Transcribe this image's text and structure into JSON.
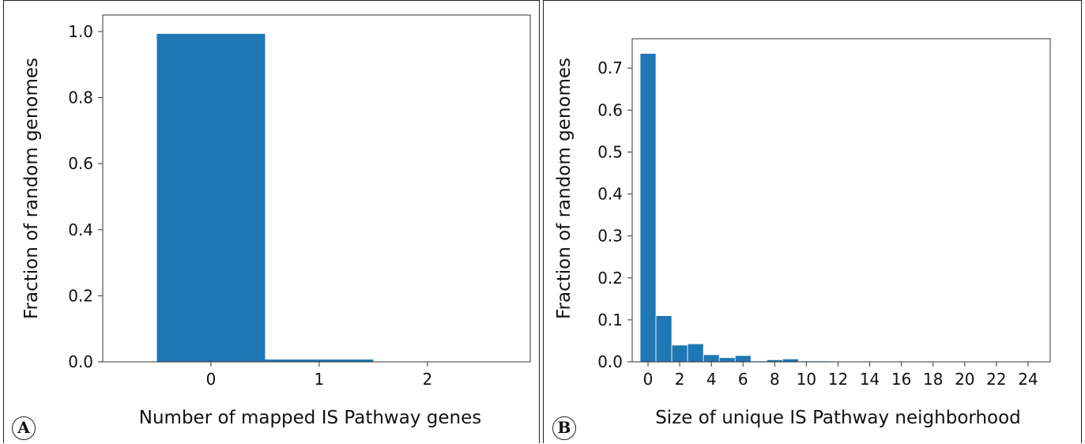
{
  "panels": {
    "a": {
      "letter": "A"
    },
    "b": {
      "letter": "B"
    }
  },
  "chart_data": [
    {
      "type": "bar",
      "panel": "A",
      "title": "",
      "xlabel": "Number of mapped IS Pathway genes",
      "ylabel": "Fraction of random genomes",
      "categories": [
        "0",
        "1",
        "2"
      ],
      "values": [
        0.993,
        0.007,
        0.0
      ],
      "xticks": [
        "0",
        "1",
        "2"
      ],
      "yticks": [
        "0.0",
        "0.2",
        "0.4",
        "0.6",
        "0.8",
        "1.0"
      ],
      "xlim": [
        -1,
        2.95
      ],
      "ylim": [
        0,
        1.05
      ],
      "color": "#1f77b4",
      "grid": false
    },
    {
      "type": "bar",
      "panel": "B",
      "title": "",
      "xlabel": "Size of unique IS Pathway neighborhood",
      "ylabel": "Fraction of random genomes",
      "categories": [
        "0",
        "1",
        "2",
        "3",
        "4",
        "5",
        "6",
        "7",
        "8",
        "9",
        "10",
        "11",
        "12",
        "13"
      ],
      "values": [
        0.735,
        0.11,
        0.04,
        0.043,
        0.017,
        0.01,
        0.015,
        0.002,
        0.005,
        0.007,
        0.002,
        0.002,
        0.001,
        0.001
      ],
      "xticks": [
        "0",
        "2",
        "4",
        "6",
        "8",
        "10",
        "12",
        "14",
        "16",
        "18",
        "20",
        "22",
        "24"
      ],
      "yticks": [
        "0.0",
        "0.1",
        "0.2",
        "0.3",
        "0.4",
        "0.5",
        "0.6",
        "0.7"
      ],
      "xlim": [
        -1,
        25.4
      ],
      "ylim": [
        0,
        0.77
      ],
      "color": "#1f77b4",
      "grid": false
    }
  ]
}
